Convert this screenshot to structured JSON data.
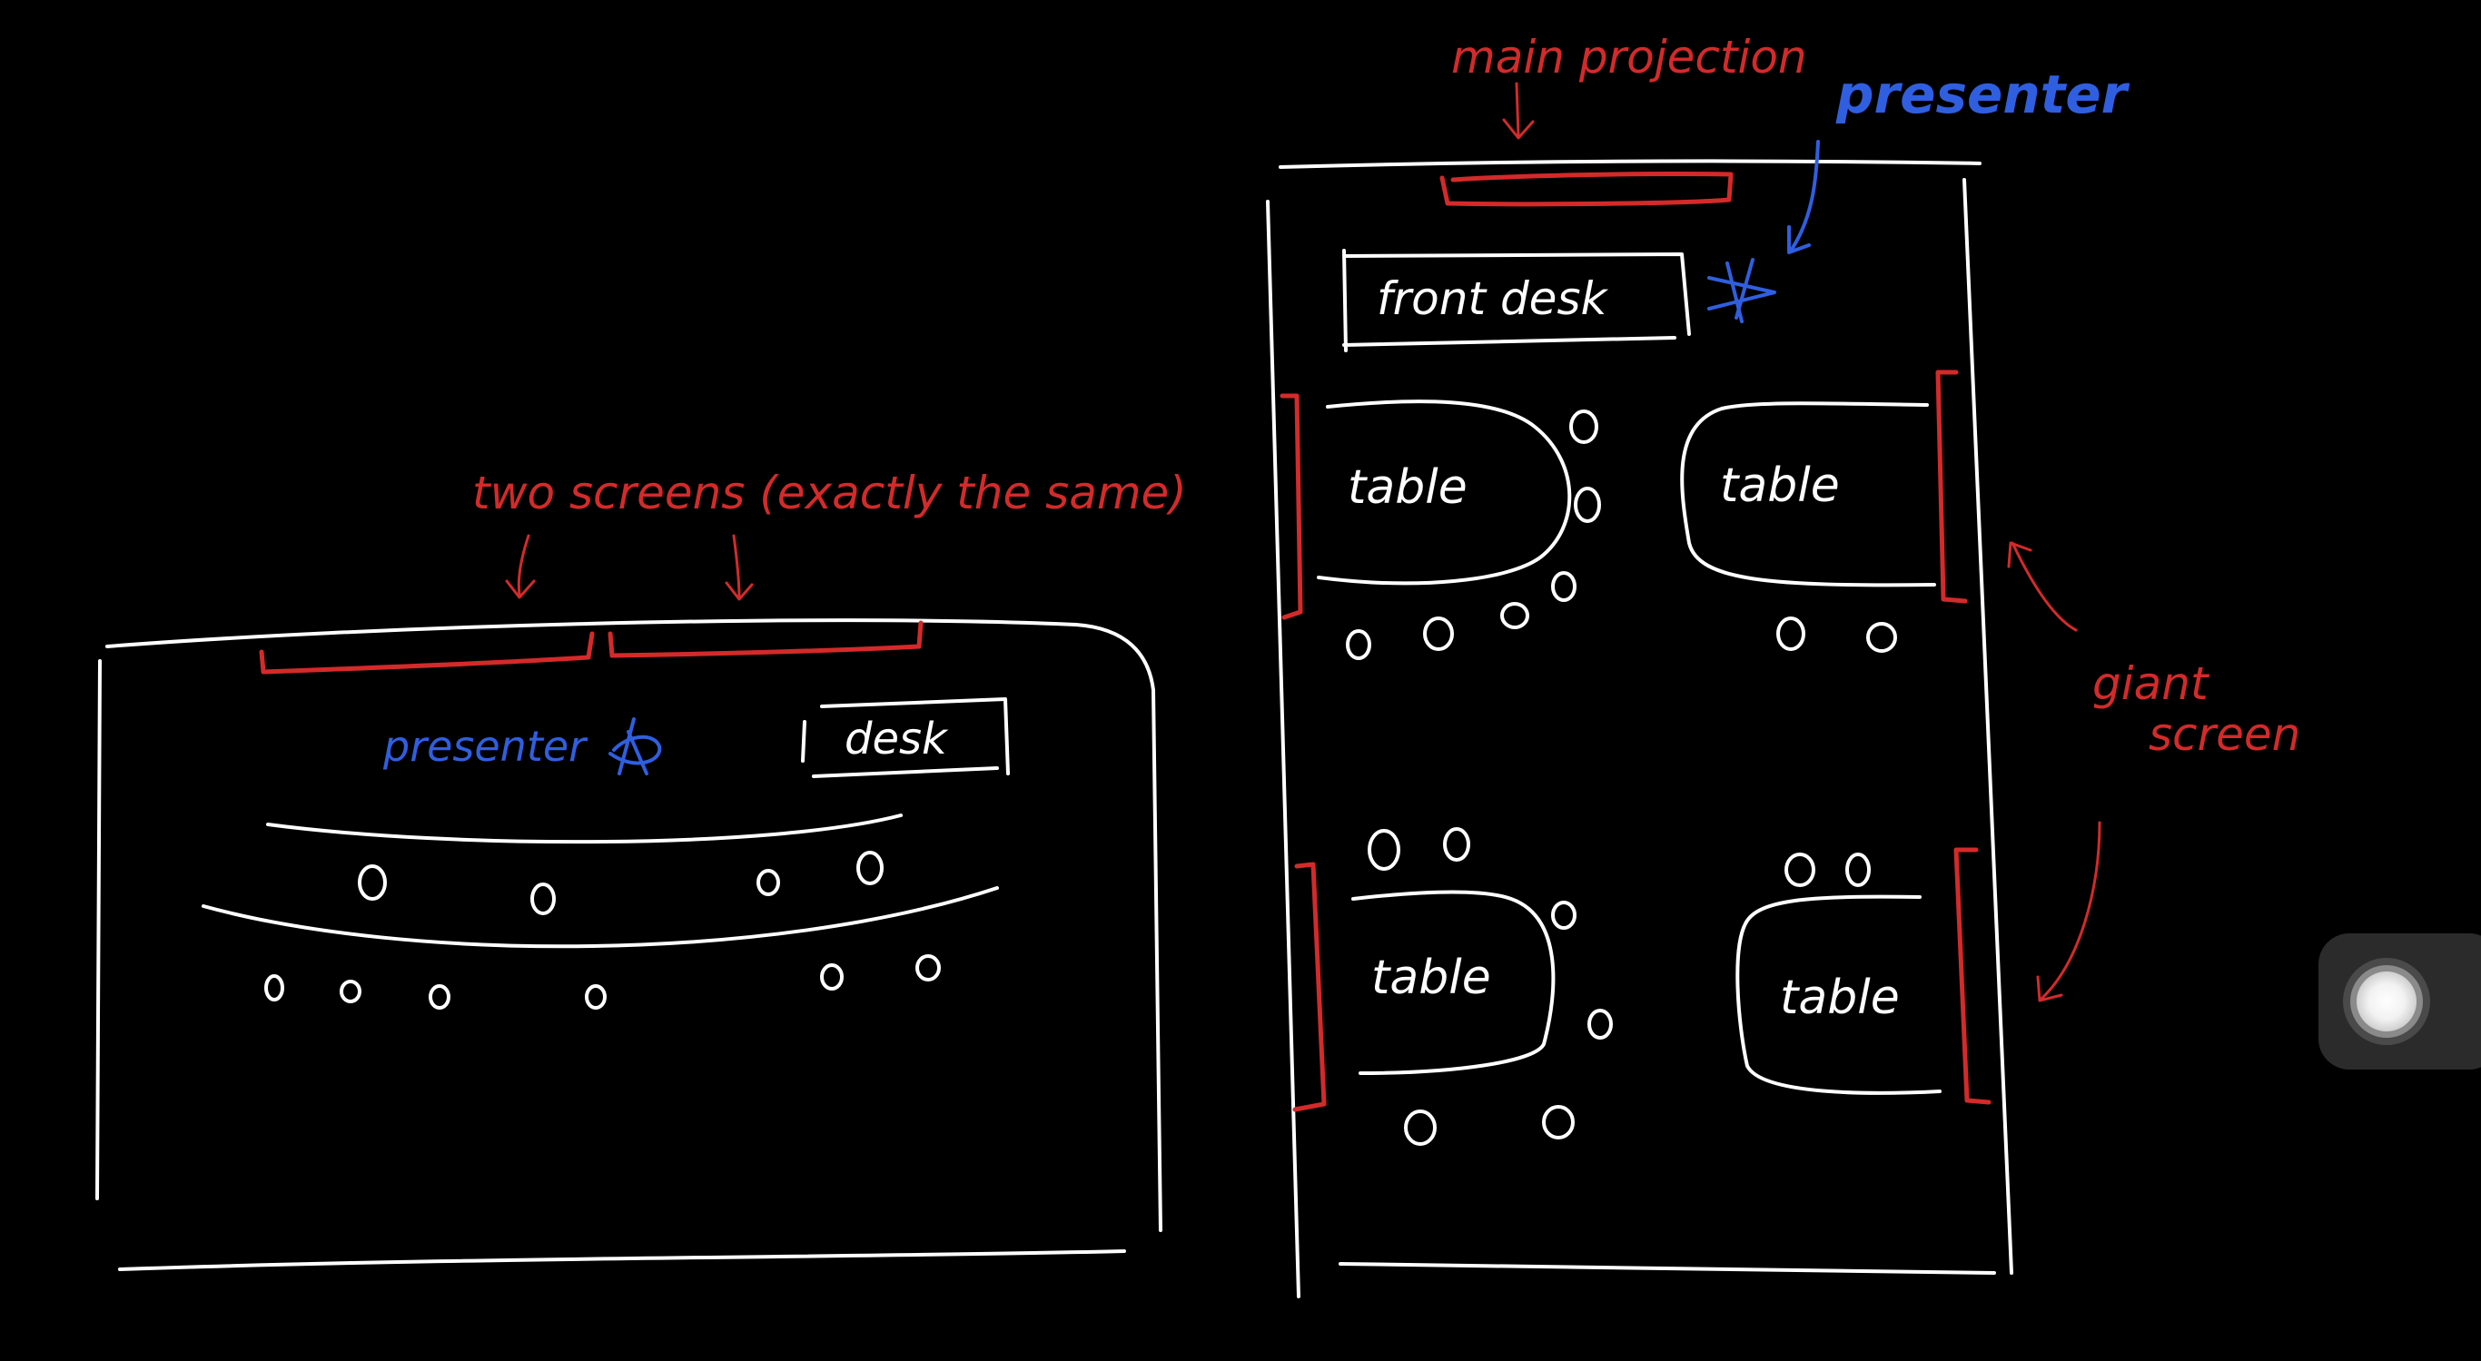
{
  "colors": {
    "background": "#000000",
    "ink_white": "#ffffff",
    "ink_red": "#d42a2a",
    "ink_blue": "#2f5fe0"
  },
  "left_room": {
    "screens_annotation": "two screens (exactly the same)",
    "presenter_label": "presenter",
    "desk_label": "desk"
  },
  "right_room": {
    "main_projection_label": "main projection",
    "presenter_label": "presenter",
    "front_desk_label": "front desk",
    "table_labels": [
      "table",
      "table",
      "table",
      "table"
    ],
    "giant_screen_label_line1": "giant",
    "giant_screen_label_line2": "screen"
  },
  "overlay": {
    "assistive_touch_icon": "assistive-touch-icon"
  }
}
